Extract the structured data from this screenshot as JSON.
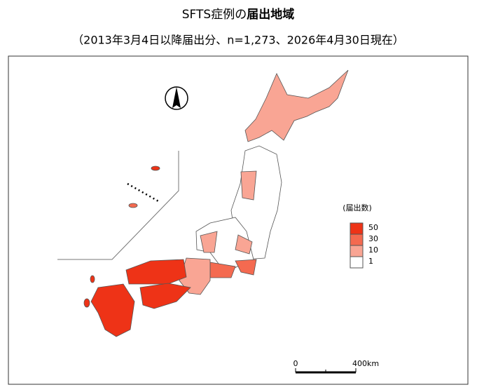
{
  "header": {
    "title_plain": "SFTS症例の",
    "title_bold": "届出地域",
    "subtitle": "（2013年3月4日以降届出分、n=1,273、2026年4月30日現在）"
  },
  "legend": {
    "title": "(届出数)",
    "items": [
      {
        "label": "50",
        "color": "#ee3317"
      },
      {
        "label": "30",
        "color": "#f46a50"
      },
      {
        "label": "10",
        "color": "#f9a594"
      },
      {
        "label": "1",
        "color": "#ffffff"
      }
    ]
  },
  "scale": {
    "start": "0",
    "end": "400km"
  }
}
